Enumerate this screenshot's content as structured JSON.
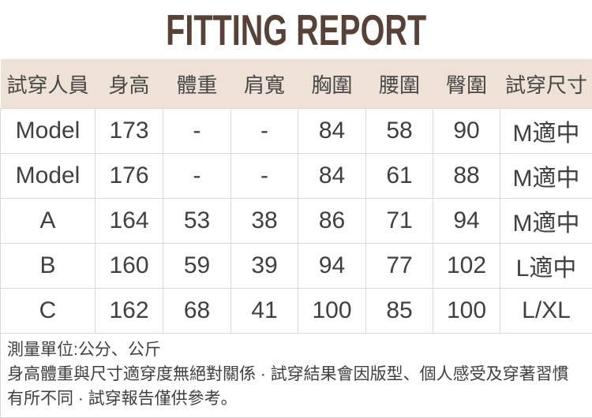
{
  "title": "FITTING REPORT",
  "colors": {
    "title_brown": "#584237",
    "header_bg": "#eee1d6",
    "body_text": "#404040",
    "border": "#d9d9d9"
  },
  "table": {
    "headers": [
      "試穿人員",
      "身高",
      "體重",
      "肩寬",
      "胸圍",
      "腰圍",
      "臀圍",
      "試穿尺寸"
    ],
    "rows": [
      [
        "Model",
        "173",
        "-",
        "-",
        "84",
        "58",
        "90",
        "M適中"
      ],
      [
        "Model",
        "176",
        "-",
        "-",
        "84",
        "61",
        "88",
        "M適中"
      ],
      [
        "A",
        "164",
        "53",
        "38",
        "86",
        "71",
        "94",
        "M適中"
      ],
      [
        "B",
        "160",
        "59",
        "39",
        "94",
        "77",
        "102",
        "L適中"
      ],
      [
        "C",
        "162",
        "68",
        "41",
        "100",
        "85",
        "100",
        "L/XL"
      ]
    ]
  },
  "footer": {
    "unit_note": "測量單位:公分、公斤",
    "disclaimer": "身高體重與尺寸適穿度無絕對關係 · 試穿結果會因版型、個人感受及穿著習慣有所不同 · 試穿報告僅供參考。"
  }
}
